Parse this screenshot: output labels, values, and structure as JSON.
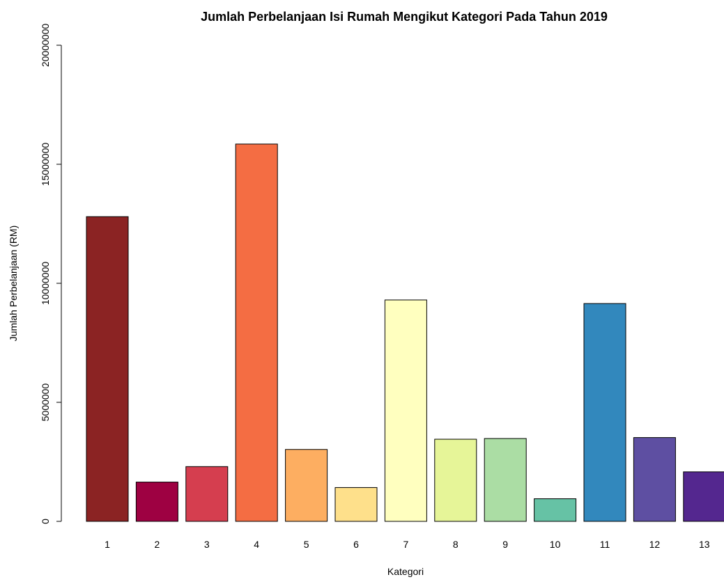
{
  "chart_data": {
    "type": "bar",
    "title": "Jumlah Perbelanjaan Isi Rumah Mengikut Kategori Pada Tahun 2019",
    "xlabel": "Kategori",
    "ylabel": "Jumlah Perbelanjaan (RM)",
    "categories": [
      "1",
      "2",
      "3",
      "4",
      "5",
      "6",
      "7",
      "8",
      "9",
      "10",
      "11",
      "12",
      "13"
    ],
    "values": [
      12800000,
      1650000,
      2300000,
      15850000,
      3020000,
      1420000,
      9300000,
      3450000,
      3480000,
      950000,
      9150000,
      3520000,
      2080000
    ],
    "colors": [
      "#8B2323",
      "#9E0142",
      "#D53E4F",
      "#F46D43",
      "#FDAE61",
      "#FEE08B",
      "#FFFFBF",
      "#E6F598",
      "#ABDDA4",
      "#66C2A5",
      "#3288BD",
      "#5E4FA2",
      "#54278F"
    ],
    "ylim": [
      0,
      20000000
    ],
    "yticks": [
      "0",
      "5000000",
      "10000000",
      "15000000",
      "20000000"
    ],
    "grid": false,
    "legend": "none"
  }
}
